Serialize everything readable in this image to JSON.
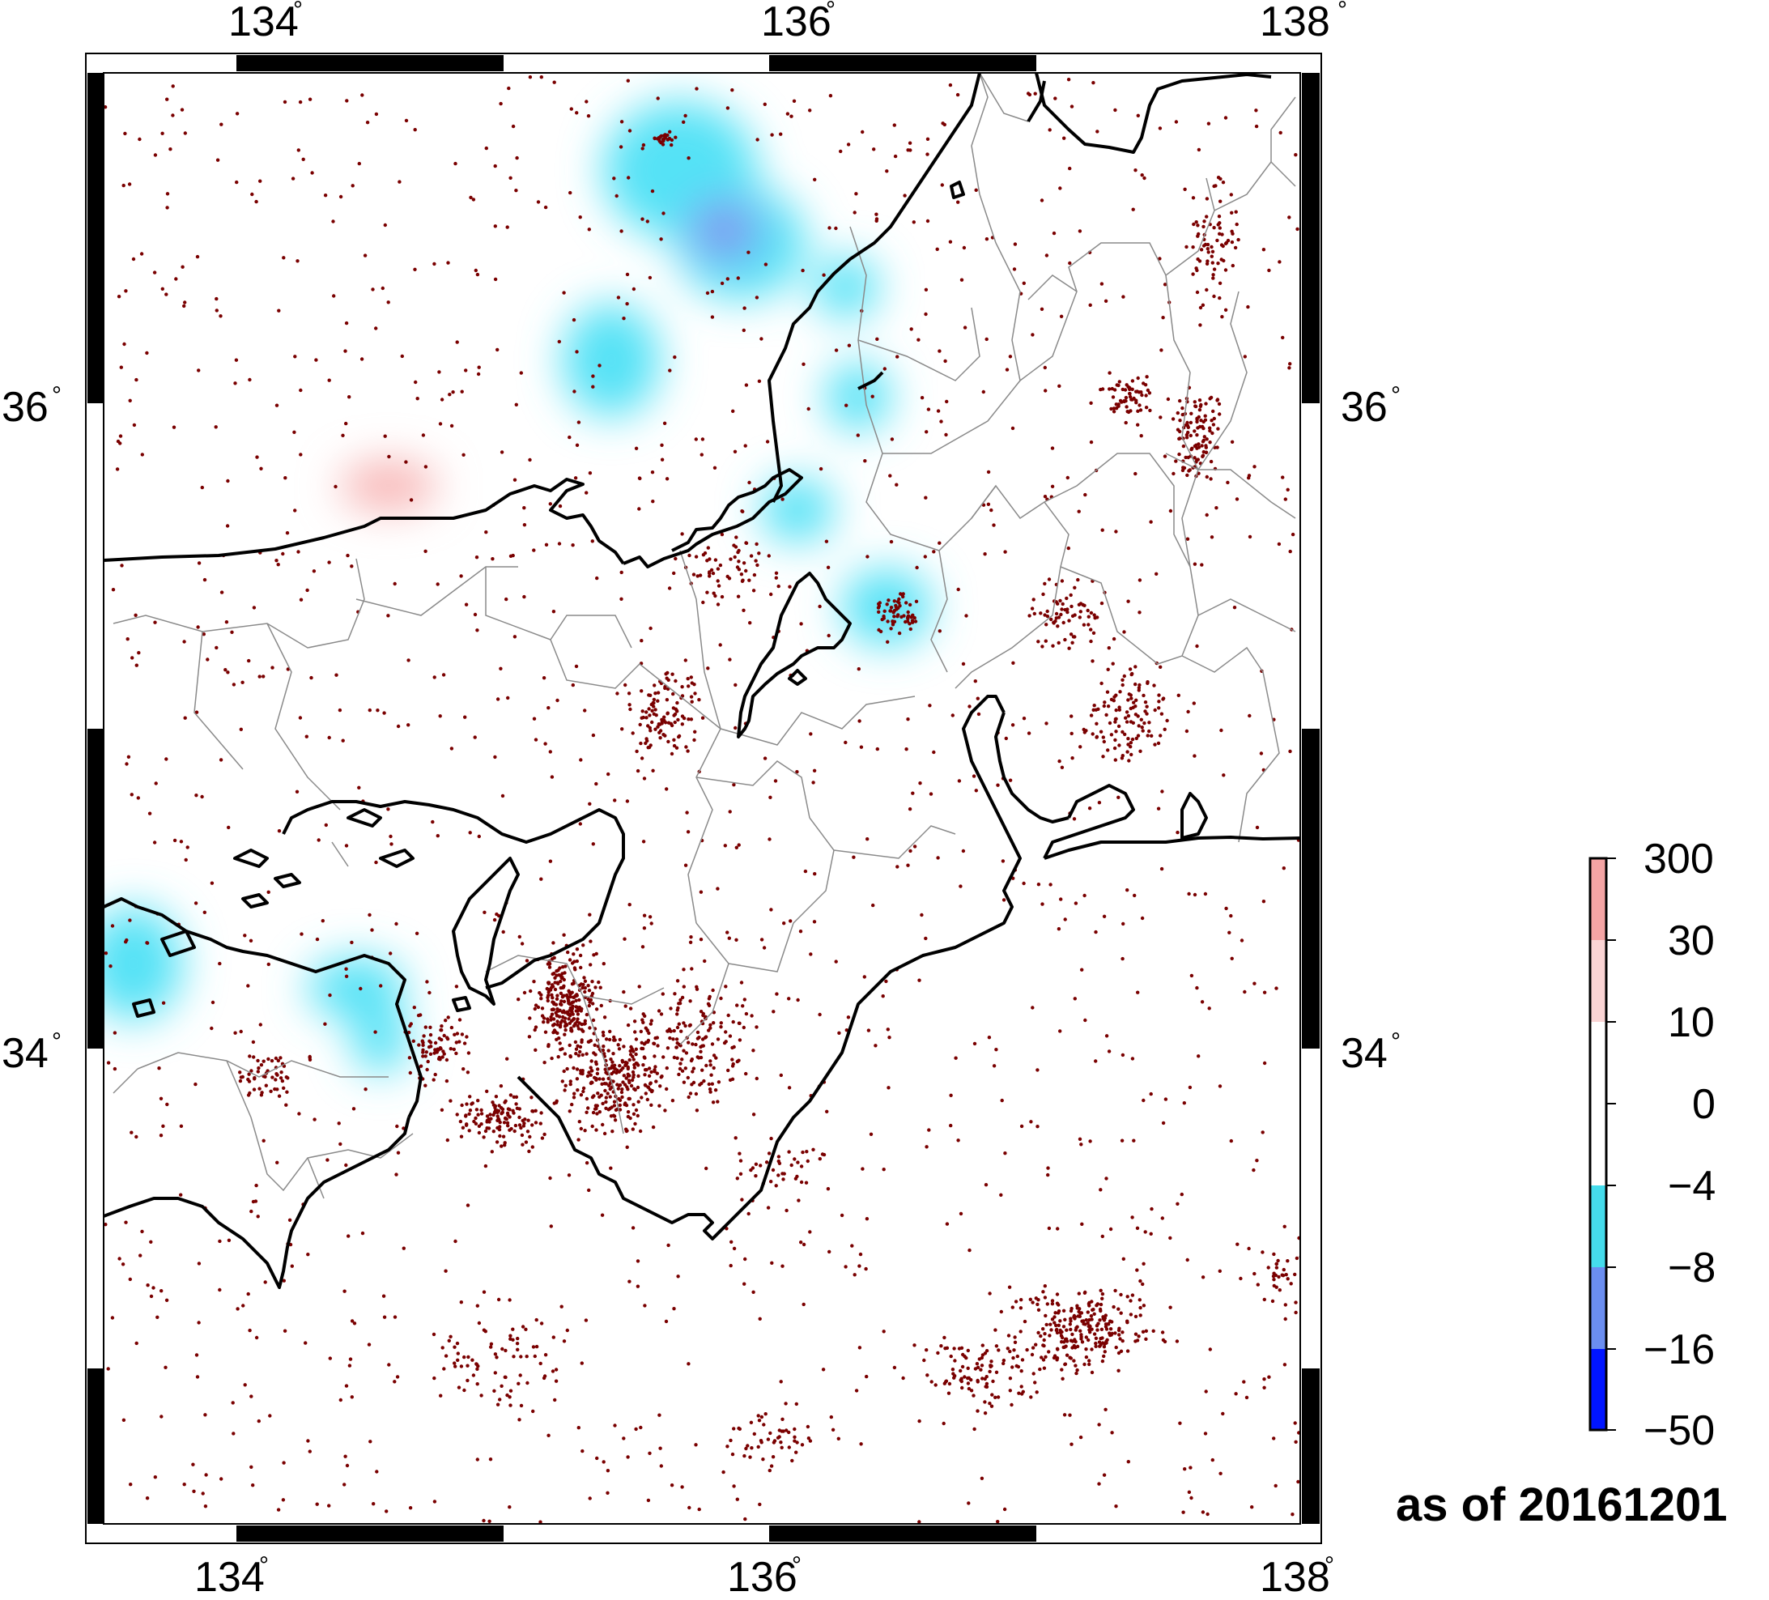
{
  "map": {
    "lon_range": [
      133.4,
      138.0
    ],
    "lat_range": [
      32.2,
      36.8
    ],
    "lon_ticks": [
      {
        "value": 134,
        "label": "134"
      },
      {
        "value": 136,
        "label": "136"
      },
      {
        "value": 138,
        "label": "138"
      }
    ],
    "lat_ticks": [
      {
        "value": 36,
        "label": "36"
      },
      {
        "value": 34,
        "label": "34"
      }
    ],
    "degree_symbol": "°",
    "earthquake_color": "#7a0000",
    "anomaly_colors": {
      "cyan": "#4fe3f5",
      "blue": "#6b8ef0",
      "pink": "#f7b8b8"
    }
  },
  "colorbar": {
    "labels": [
      "300",
      "30",
      "10",
      "0",
      "−4",
      "−8",
      "−16",
      "−50"
    ],
    "colors": [
      "#f4a5a5",
      "#fad4d4",
      "#ffffff",
      "#ffffff",
      "#45dcec",
      "#6b8ef0",
      "#0015ff"
    ]
  },
  "footer": {
    "as_of": "as of 20161201"
  }
}
